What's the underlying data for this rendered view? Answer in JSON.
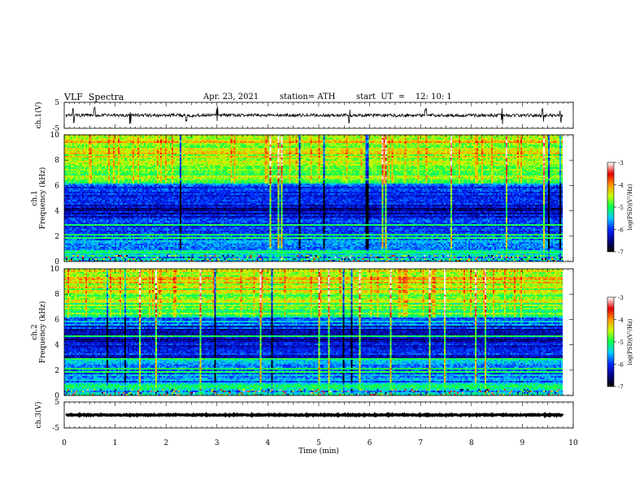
{
  "header": {
    "title": "VLF  Spectra",
    "date": "Apr. 23, 2021",
    "station": "station= ATH",
    "start": "start  UT  =    12: 10: 1"
  },
  "chart_data": [
    {
      "type": "line",
      "panel": "ch1-waveform",
      "ylabel": "ch.1(V)",
      "ylim": [
        -5,
        5
      ],
      "y_ticks": [
        "5",
        "-5"
      ],
      "baseline_v": 0.0,
      "noise_amplitude_v": 0.6,
      "spikes_at_min": [
        0.18,
        0.6,
        1.3,
        2.4,
        3.0,
        5.6,
        7.1,
        8.6,
        9.4,
        9.75
      ]
    },
    {
      "type": "heatmap",
      "panel": "ch1-spectrogram",
      "ylabel": "ch.1\nFrequency  (kHz)",
      "ylim": [
        0,
        10
      ],
      "y_ticks": [
        "0",
        "2",
        "4",
        "6",
        "8",
        "10"
      ],
      "data_xlim": [
        0,
        9.8
      ],
      "quiet_band_khz": [
        2.5,
        6.0
      ],
      "quiet_band_center_khz": 4.2,
      "bright_lines_khz": [
        0.7,
        1.9,
        2.1,
        2.9,
        6.5
      ]
    },
    {
      "type": "heatmap",
      "panel": "ch2-spectrogram",
      "ylabel": "ch.2\nFrequency  (kHz)",
      "ylim": [
        0,
        10
      ],
      "y_ticks": [
        "0",
        "2",
        "4",
        "6",
        "8",
        "10"
      ],
      "data_xlim": [
        0,
        9.8
      ],
      "quiet_band_khz": [
        3.0,
        5.5
      ],
      "quiet_band_center_khz": 4.2,
      "bright_lines_khz": [
        0.7,
        1.9,
        2.1,
        2.9,
        4.7
      ]
    },
    {
      "type": "line",
      "panel": "ch3-waveform",
      "ylabel": "ch.3(V)",
      "ylim": [
        -5,
        5
      ],
      "y_ticks": [
        "5",
        "-5"
      ],
      "baseline_v": 0.0,
      "noise_amplitude_v": 0.2
    }
  ],
  "x_axis": {
    "label": "Time  (min)",
    "xlim": [
      0,
      10
    ],
    "ticks": [
      "0",
      "1",
      "2",
      "3",
      "4",
      "5",
      "6",
      "7",
      "8",
      "9",
      "10"
    ]
  },
  "colorbars": [
    {
      "label": "log(PSD)(V²/Hz)",
      "range": [
        -7,
        -3
      ],
      "ticks": [
        "-3",
        "-4",
        "-5",
        "-6",
        "-7"
      ]
    },
    {
      "label": "log(PSD)(V²/Hz)",
      "range": [
        -7,
        -3
      ],
      "ticks": [
        "-3",
        "-4",
        "-5",
        "-6",
        "-7"
      ]
    }
  ],
  "colors": {
    "colormap": [
      "#000000",
      "#00008c",
      "#0028ff",
      "#00c8ff",
      "#00ff50",
      "#c8ff00",
      "#ff9600",
      "#e60000",
      "#ffffff"
    ]
  }
}
